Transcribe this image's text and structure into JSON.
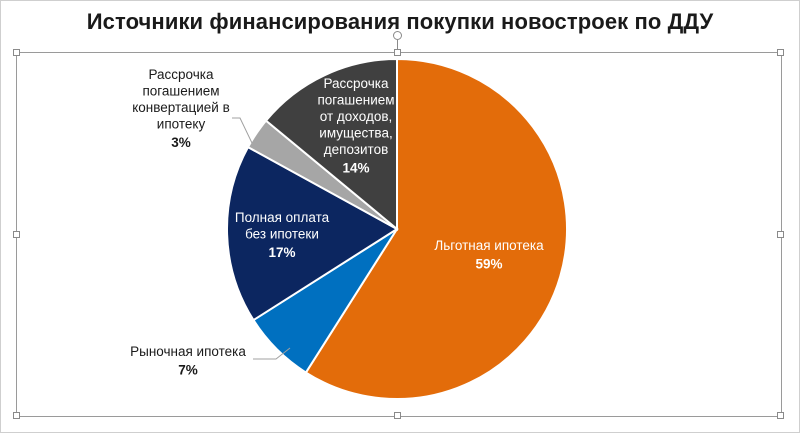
{
  "title": "Источники финансирования покупки новостроек по ДДУ",
  "chart_data": {
    "type": "pie",
    "title": "Источники финансирования покупки новостроек по ДДУ",
    "start_angle_deg": 0,
    "direction": "clockwise",
    "slices": [
      {
        "label": "Льготная ипотека",
        "label_lines": [
          "Льготная ипотека"
        ],
        "value": 59,
        "pct_label": "59%",
        "color": "#E36C0A",
        "label_color": "#ffffff",
        "label_inside": true
      },
      {
        "label": "Рыночная ипотека",
        "label_lines": [
          "Рыночная ипотека"
        ],
        "value": 7,
        "pct_label": "7%",
        "color": "#0070C0",
        "label_color": "#1a1a1a",
        "label_inside": false
      },
      {
        "label": "Полная оплата без ипотеки",
        "label_lines": [
          "Полная оплата",
          "без ипотеки"
        ],
        "value": 17,
        "pct_label": "17%",
        "color": "#0C2660",
        "label_color": "#ffffff",
        "label_inside": true
      },
      {
        "label": "Рассрочка погашением конвертацией в ипотеку",
        "label_lines": [
          "Рассрочка",
          "погашением",
          "конвертацией в",
          "ипотеку"
        ],
        "value": 3,
        "pct_label": "3%",
        "color": "#A6A6A6",
        "label_color": "#1a1a1a",
        "label_inside": false
      },
      {
        "label": "Рассрочка погашением от доходов, имущества, депозитов",
        "label_lines": [
          "Рассрочка",
          "погашением",
          "от доходов,",
          "имущества,",
          "депозитов"
        ],
        "value": 14,
        "pct_label": "14%",
        "color": "#404040",
        "label_color": "#ffffff",
        "label_inside": true
      }
    ]
  }
}
